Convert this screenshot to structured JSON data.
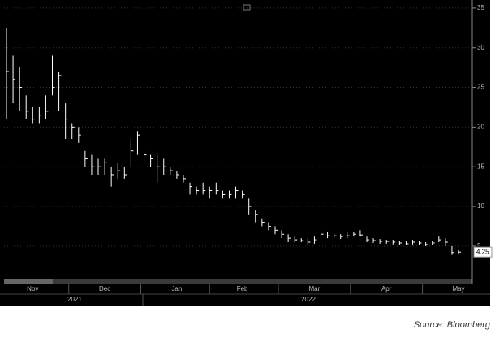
{
  "chart_data": {
    "type": "hlc",
    "categories": [
      null,
      null,
      null,
      null,
      "Nov",
      null,
      null,
      null,
      null,
      null,
      null,
      null,
      null,
      null,
      null,
      "Dec",
      null,
      null,
      null,
      null,
      null,
      null,
      null,
      null,
      null,
      null,
      "Jan",
      null,
      null,
      null,
      null,
      null,
      null,
      null,
      null,
      null,
      "Feb",
      null,
      null,
      null,
      null,
      null,
      null,
      null,
      null,
      null,
      null,
      "Mar",
      null,
      null,
      null,
      null,
      null,
      null,
      null,
      null,
      null,
      null,
      "Apr",
      null,
      null,
      null,
      null,
      null,
      null,
      null,
      null,
      null,
      null,
      "May"
    ],
    "x_groups": [
      "2021",
      "2022"
    ],
    "series": [
      {
        "name": "high",
        "values": [
          32.5,
          29,
          27.5,
          24,
          22.5,
          22.5,
          24,
          29,
          27,
          23,
          20.5,
          20,
          17,
          16.5,
          16,
          16,
          15,
          15.5,
          15,
          18.5,
          19.5,
          17,
          16.5,
          16.5,
          16,
          15,
          14.5,
          14,
          13,
          12.5,
          13,
          12.5,
          13,
          12,
          12,
          12.5,
          12,
          11,
          9.5,
          8.5,
          8,
          7.5,
          7,
          6.5,
          6.2,
          6,
          6,
          6.2,
          7,
          6.8,
          6.6,
          6.5,
          6.7,
          6.8,
          7,
          6.2,
          6,
          5.9,
          5.8,
          5.8,
          5.7,
          5.6,
          5.8,
          5.7,
          5.5,
          5.7,
          6.2,
          6,
          5,
          4.5
        ]
      },
      {
        "name": "low",
        "values": [
          21,
          23,
          22,
          21,
          20.5,
          20.5,
          21,
          24,
          22,
          18.5,
          18.5,
          18,
          15,
          14,
          14,
          14,
          12.5,
          13.5,
          13.5,
          15,
          16.5,
          15.5,
          15,
          13,
          14,
          14,
          13.5,
          13,
          11.5,
          11.5,
          11.5,
          11,
          11.5,
          11,
          11,
          11,
          11,
          9,
          8,
          7.5,
          7,
          6.5,
          6,
          5.5,
          5.5,
          5.5,
          5.2,
          5.3,
          6,
          6,
          6,
          5.9,
          6,
          6.2,
          6.2,
          5.5,
          5.4,
          5.3,
          5.3,
          5.2,
          5.1,
          5.1,
          5.2,
          5.1,
          5,
          5.1,
          5.5,
          5,
          3.9,
          4
        ]
      },
      {
        "name": "close",
        "values": [
          27,
          26,
          25,
          22,
          21,
          21.5,
          22,
          25,
          26.5,
          21,
          20,
          19,
          16,
          15,
          15,
          15.5,
          14,
          14.5,
          14,
          17,
          19,
          16.5,
          16,
          15,
          15,
          14.5,
          14,
          13.5,
          12.5,
          12,
          12,
          12,
          12,
          11.5,
          11.5,
          12,
          11.5,
          10,
          9,
          8,
          7.5,
          7,
          6.5,
          6,
          5.8,
          5.7,
          5.5,
          5.8,
          6.5,
          6.3,
          6.3,
          6.2,
          6.3,
          6.5,
          6.4,
          5.8,
          5.7,
          5.6,
          5.6,
          5.5,
          5.4,
          5.3,
          5.5,
          5.4,
          5.2,
          5.4,
          5.8,
          5.5,
          4.2,
          4.25
        ]
      }
    ],
    "color": "#ffffff",
    "ylim": [
      1.2,
      35.5
    ],
    "yticks": [
      5,
      10,
      15,
      20,
      25,
      30,
      35
    ],
    "grid": true,
    "source": "Source: Bloomberg"
  }
}
